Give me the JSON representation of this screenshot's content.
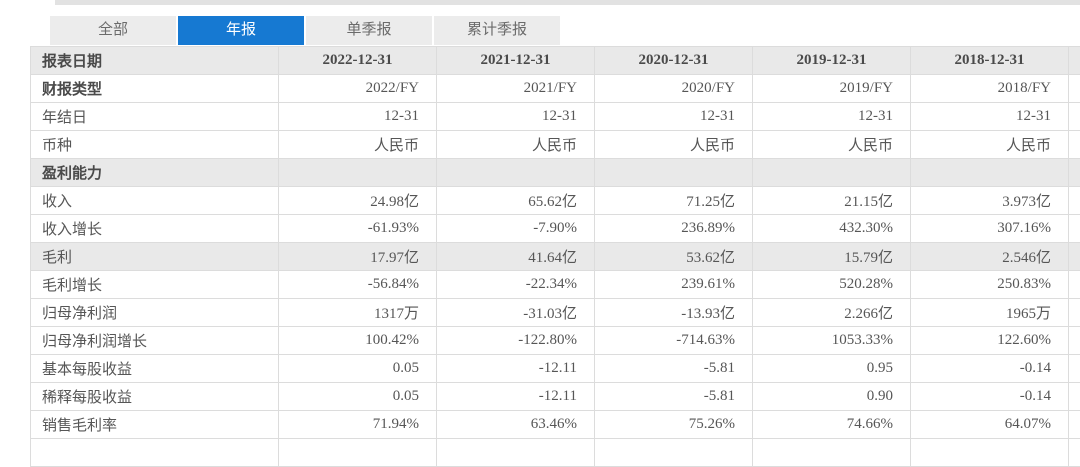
{
  "colors": {
    "accent_blue": "#1679d2",
    "tab_inactive_bg": "#ececec",
    "row_highlight_bg": "#e9e9e9",
    "border": "#dcdcdc"
  },
  "tabs": [
    {
      "id": "tab-all",
      "label": "全部",
      "active": false
    },
    {
      "id": "tab-annual-report",
      "label": "年报",
      "active": true
    },
    {
      "id": "tab-single-quarter-report",
      "label": "单季报",
      "active": false
    },
    {
      "id": "tab-cumulative-quarter-report",
      "label": "累计季报",
      "active": false
    }
  ],
  "table": {
    "header": {
      "label": "报表日期",
      "dates": [
        "2022-12-31",
        "2021-12-31",
        "2020-12-31",
        "2019-12-31",
        "2018-12-31"
      ]
    },
    "rows": [
      {
        "label": "财报类型",
        "type": "data",
        "bold_label": true,
        "values": [
          "2022/FY",
          "2021/FY",
          "2020/FY",
          "2019/FY",
          "2018/FY"
        ]
      },
      {
        "label": "年结日",
        "type": "data",
        "values": [
          "12-31",
          "12-31",
          "12-31",
          "12-31",
          "12-31"
        ]
      },
      {
        "label": "币种",
        "type": "data",
        "values": [
          "人民币",
          "人民币",
          "人民币",
          "人民币",
          "人民币"
        ]
      },
      {
        "label": "盈利能力",
        "type": "section",
        "values": [
          "",
          "",
          "",
          "",
          ""
        ]
      },
      {
        "label": "收入",
        "type": "data",
        "values": [
          "24.98亿",
          "65.62亿",
          "71.25亿",
          "21.15亿",
          "3.973亿"
        ]
      },
      {
        "label": "收入增长",
        "type": "data",
        "values": [
          "-61.93%",
          "-7.90%",
          "236.89%",
          "432.30%",
          "307.16%"
        ]
      },
      {
        "label": "毛利",
        "type": "data",
        "highlighted": true,
        "values": [
          "17.97亿",
          "41.64亿",
          "53.62亿",
          "15.79亿",
          "2.546亿"
        ]
      },
      {
        "label": "毛利增长",
        "type": "data",
        "values": [
          "-56.84%",
          "-22.34%",
          "239.61%",
          "520.28%",
          "250.83%"
        ]
      },
      {
        "label": "归母净利润",
        "type": "data",
        "values": [
          "1317万",
          "-31.03亿",
          "-13.93亿",
          "2.266亿",
          "1965万"
        ]
      },
      {
        "label": "归母净利润增长",
        "type": "data",
        "values": [
          "100.42%",
          "-122.80%",
          "-714.63%",
          "1053.33%",
          "122.60%"
        ]
      },
      {
        "label": "基本每股收益",
        "type": "data",
        "values": [
          "0.05",
          "-12.11",
          "-5.81",
          "0.95",
          "-0.14"
        ]
      },
      {
        "label": "稀释每股收益",
        "type": "data",
        "values": [
          "0.05",
          "-12.11",
          "-5.81",
          "0.90",
          "-0.14"
        ]
      },
      {
        "label": "销售毛利率",
        "type": "data",
        "values": [
          "71.94%",
          "63.46%",
          "75.26%",
          "74.66%",
          "64.07%"
        ]
      }
    ]
  }
}
